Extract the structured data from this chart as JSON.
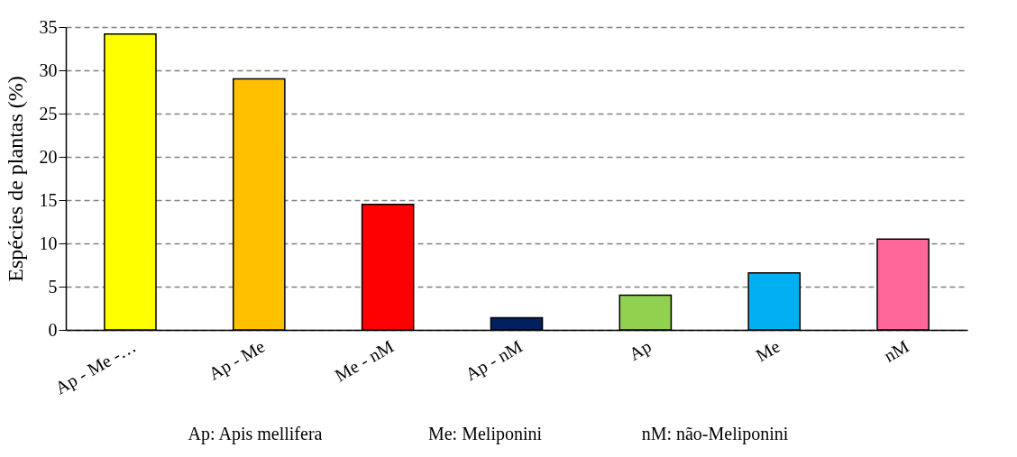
{
  "chart_data": {
    "type": "bar",
    "ylabel": "Espécies de plantas (%)",
    "categories": [
      "Ap - Me -…",
      "Ap - Me",
      "Me - nM",
      "Ap - nM",
      "Ap",
      "Me",
      "nM"
    ],
    "values": [
      34.2,
      29.0,
      14.5,
      1.4,
      4.0,
      6.6,
      10.5
    ],
    "colors": [
      "#ffff00",
      "#ffc000",
      "#ff0000",
      "#002060",
      "#92d050",
      "#00b0f0",
      "#ff6699"
    ],
    "ylim": [
      0,
      35
    ],
    "yticks": [
      0,
      5,
      10,
      15,
      20,
      25,
      30,
      35
    ],
    "grid": "y",
    "annotations": [
      "Ap: Apis mellifera",
      "Me: Meliponini",
      "nM: não-Meliponini"
    ]
  }
}
